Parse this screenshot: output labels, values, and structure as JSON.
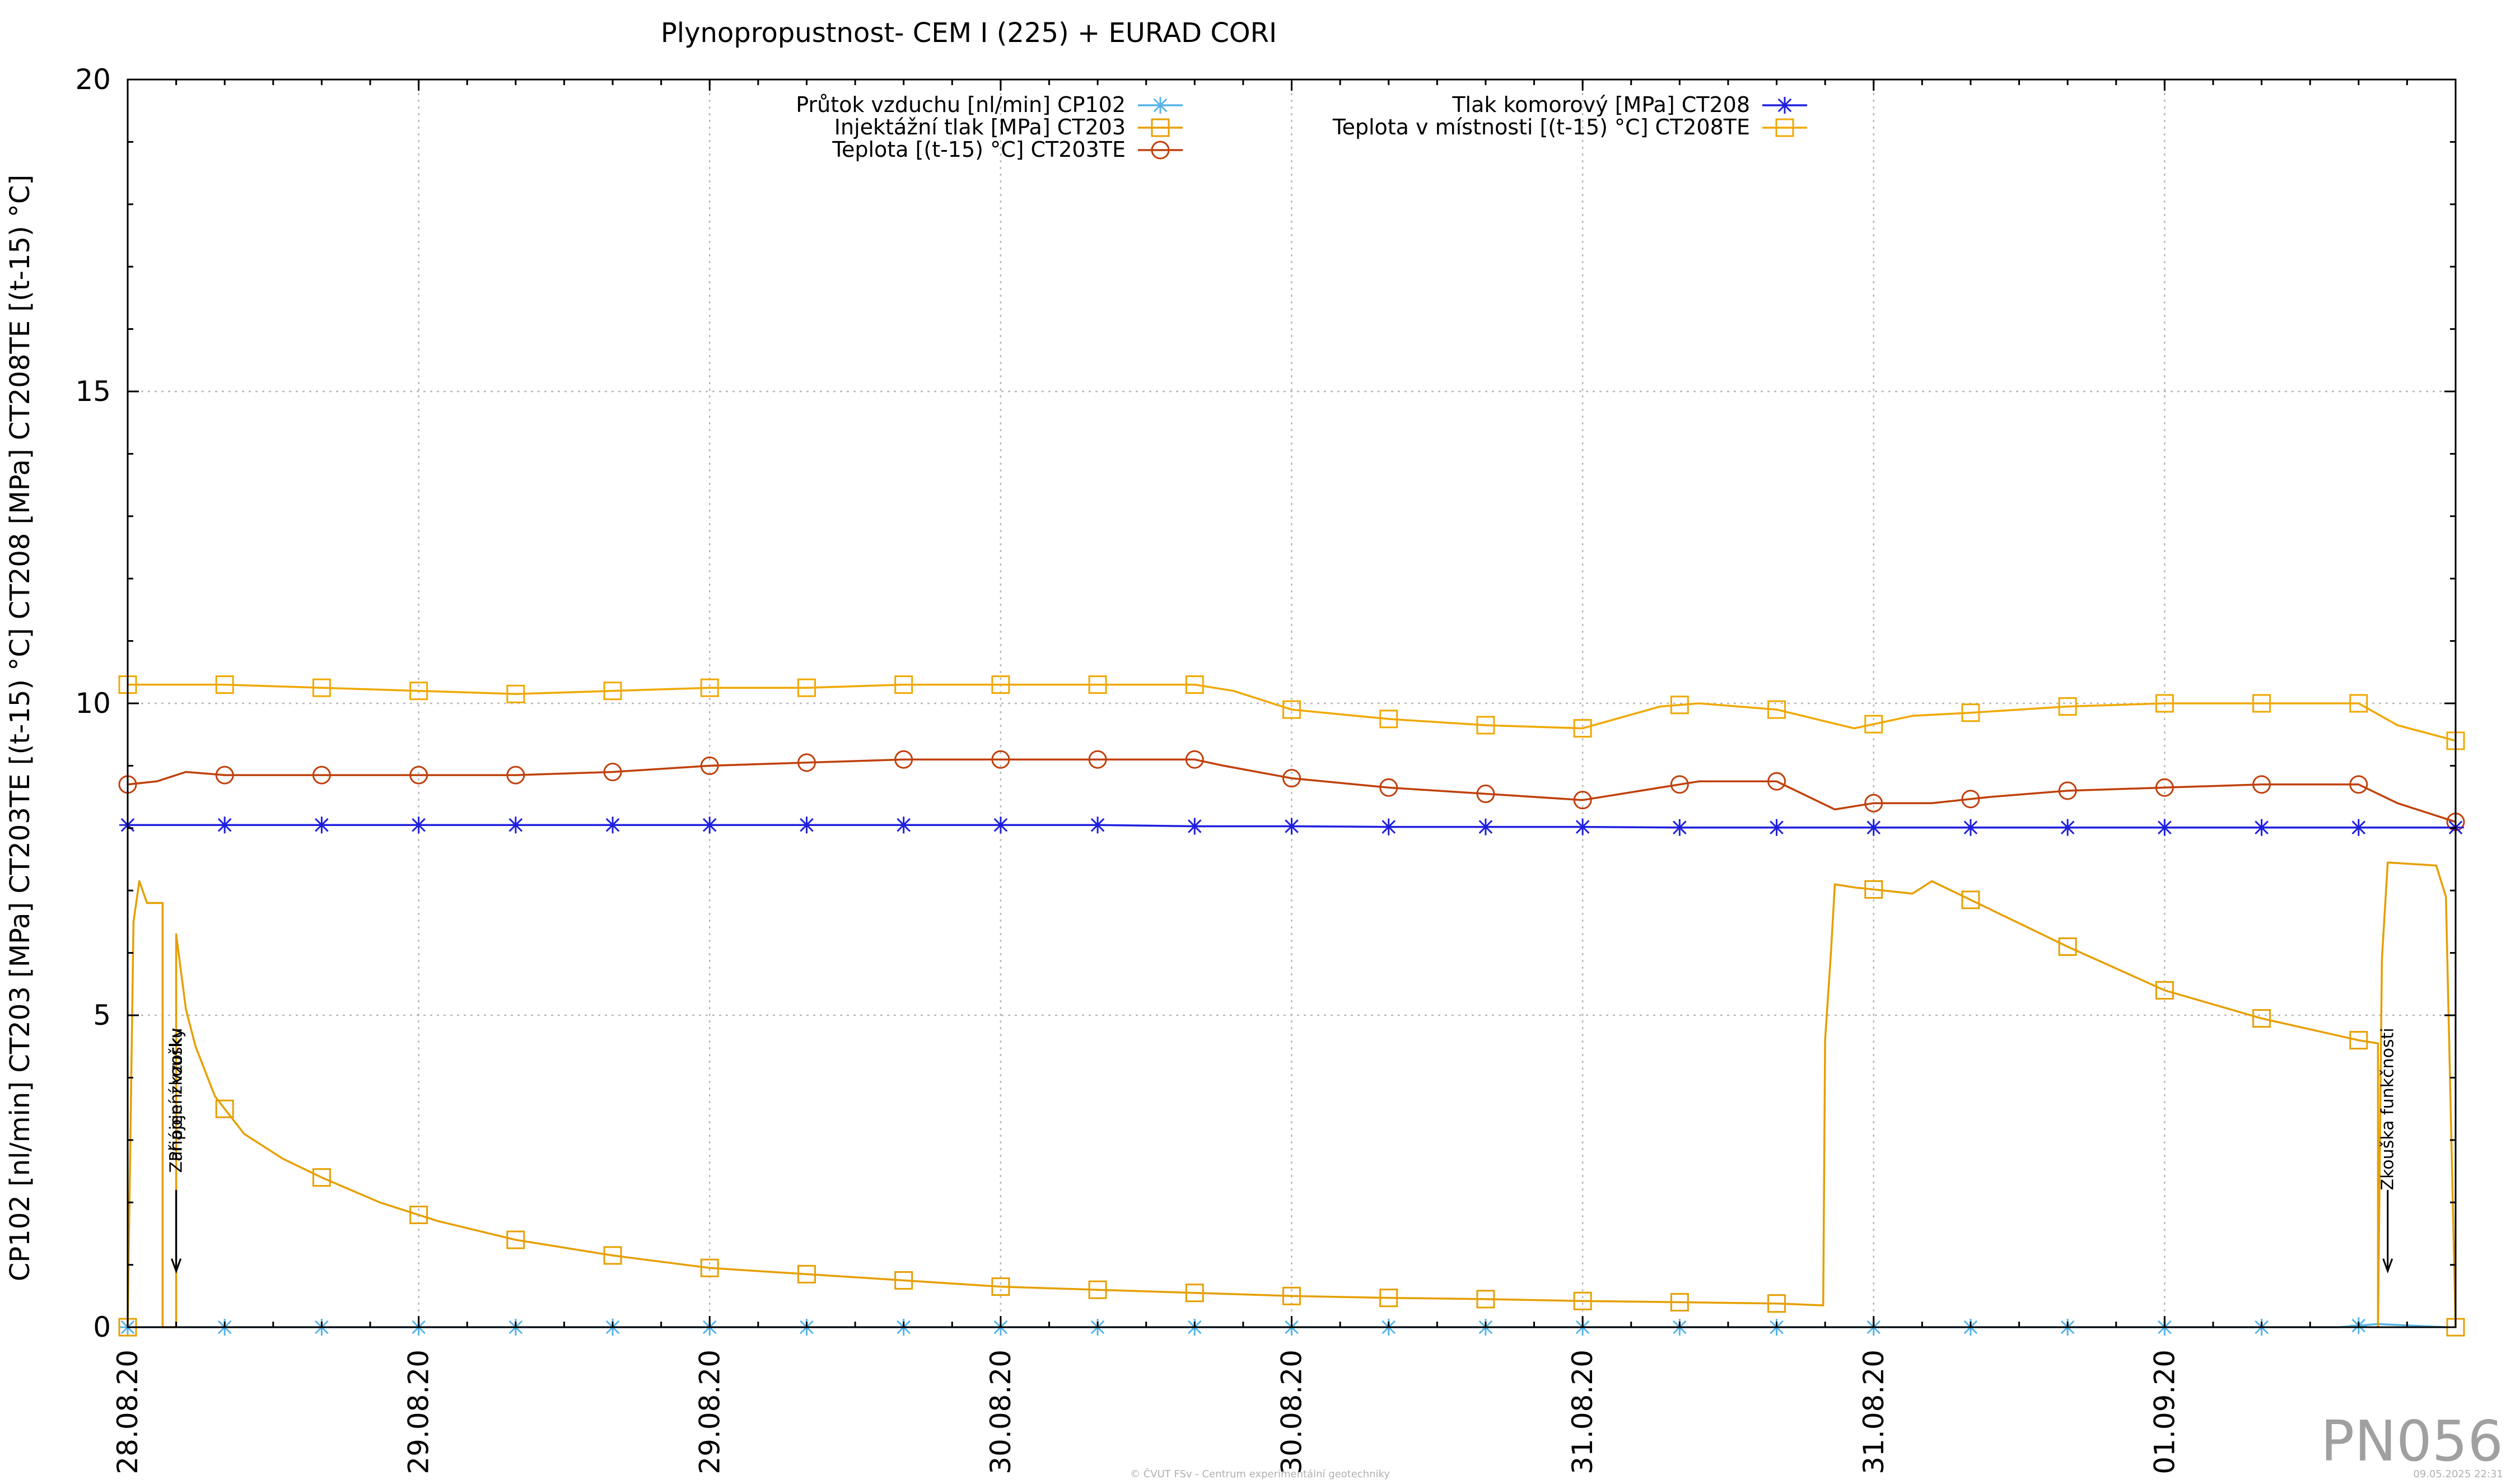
{
  "chart_data": {
    "type": "line",
    "title": "Plynopropustnost- CEM I (225) + EURAD CORI",
    "ylabel": "CP102 [nl/min] CT203 [MPa] CT203TE [(t-15) °C] CT208 [MPa] CT208TE [(t-15) °C]",
    "xlabel": "",
    "ylim": [
      0,
      20
    ],
    "yticks": [
      "0",
      "5",
      "10",
      "15",
      "20"
    ],
    "xlim": [
      0,
      12
    ],
    "xticks": [
      "28.08.20",
      "29.08.20",
      "29.08.20",
      "30.08.20",
      "30.08.20",
      "31.08.20",
      "31.08.20",
      "01.09.20"
    ],
    "grid": true,
    "legend_position": "top",
    "series": [
      {
        "name": "Průtok vzduchu [nl/min] CP102",
        "color": "#56b4e9",
        "marker": "star",
        "x": [
          0.0,
          0.25,
          0.5,
          0.75,
          1.0,
          1.5,
          2.0,
          3.0,
          4.0,
          5.0,
          6.0,
          7.0,
          8.0,
          9.0,
          10.0,
          11.0,
          11.4,
          11.6,
          11.95
        ],
        "y": [
          0.0,
          0.0,
          0.0,
          0.0,
          0.0,
          0.0,
          0.0,
          0.0,
          0.0,
          0.0,
          0.0,
          0.0,
          0.0,
          0.0,
          0.0,
          0.0,
          0.0,
          0.05,
          0.0
        ]
      },
      {
        "name": "Injektážní tlak [MPa] CT203",
        "color": "#e69f00",
        "marker": "square",
        "x": [
          0.0,
          0.03,
          0.06,
          0.1,
          0.15,
          0.18,
          0.18,
          0.25,
          0.25,
          0.3,
          0.35,
          0.45,
          0.6,
          0.8,
          1.0,
          1.3,
          1.6,
          2.0,
          2.5,
          3.0,
          3.5,
          4.0,
          4.5,
          5.0,
          5.5,
          6.0,
          6.5,
          7.0,
          7.5,
          8.0,
          8.5,
          8.74,
          8.75,
          8.78,
          8.8,
          8.9,
          9.2,
          9.3,
          9.6,
          10.0,
          10.5,
          11.0,
          11.5,
          11.6,
          11.6,
          11.62,
          11.65,
          11.9,
          11.95,
          12.0
        ],
        "y": [
          0.0,
          6.5,
          7.15,
          6.8,
          6.8,
          6.8,
          0.0,
          0.0,
          6.3,
          5.1,
          4.5,
          3.7,
          3.1,
          2.7,
          2.4,
          2.0,
          1.7,
          1.4,
          1.15,
          0.95,
          0.85,
          0.75,
          0.65,
          0.6,
          0.55,
          0.5,
          0.47,
          0.45,
          0.42,
          0.4,
          0.38,
          0.35,
          4.6,
          6.0,
          7.1,
          7.05,
          6.95,
          7.15,
          6.7,
          6.1,
          5.4,
          4.95,
          4.6,
          4.55,
          0.0,
          5.9,
          7.45,
          7.4,
          6.9,
          0.0
        ]
      },
      {
        "name": "Teplota [(t-15) °C] CT203TE",
        "color": "#c0400b",
        "marker": "circle",
        "x": [
          0.0,
          0.15,
          0.3,
          0.5,
          0.8,
          1.2,
          1.6,
          2.0,
          2.5,
          3.0,
          3.5,
          4.0,
          4.5,
          5.0,
          5.5,
          5.65,
          6.0,
          6.5,
          7.0,
          7.5,
          7.9,
          8.1,
          8.5,
          8.8,
          9.0,
          9.3,
          9.6,
          10.0,
          10.5,
          11.0,
          11.5,
          11.7,
          12.0
        ],
        "y": [
          8.7,
          8.75,
          8.9,
          8.85,
          8.85,
          8.85,
          8.85,
          8.85,
          8.9,
          9.0,
          9.05,
          9.1,
          9.1,
          9.1,
          9.1,
          9.0,
          8.8,
          8.65,
          8.55,
          8.45,
          8.65,
          8.75,
          8.75,
          8.3,
          8.4,
          8.4,
          8.5,
          8.6,
          8.65,
          8.7,
          8.7,
          8.4,
          8.1
        ]
      },
      {
        "name": "Tlak komorový [MPa] CT208",
        "color": "#1f1fe0",
        "marker": "star",
        "x": [
          0.0,
          0.5,
          1.0,
          1.5,
          2.0,
          2.5,
          3.0,
          3.5,
          4.0,
          4.5,
          5.0,
          5.5,
          6.0,
          6.5,
          7.0,
          7.5,
          8.0,
          8.5,
          9.0,
          9.5,
          10.0,
          10.5,
          11.0,
          11.5,
          12.0
        ],
        "y": [
          8.05,
          8.05,
          8.05,
          8.05,
          8.05,
          8.05,
          8.05,
          8.05,
          8.05,
          8.05,
          8.05,
          8.03,
          8.03,
          8.02,
          8.02,
          8.02,
          8.01,
          8.01,
          8.01,
          8.01,
          8.01,
          8.01,
          8.01,
          8.01,
          8.01
        ]
      },
      {
        "name": "Teplota v místnosti [(t-15) °C] CT208TE",
        "color": "#f0a800",
        "marker": "square",
        "x": [
          0.0,
          0.5,
          1.0,
          1.5,
          2.0,
          2.5,
          3.0,
          3.5,
          4.0,
          4.5,
          5.0,
          5.5,
          5.7,
          6.0,
          6.5,
          7.0,
          7.5,
          7.9,
          8.1,
          8.5,
          8.9,
          9.2,
          9.5,
          10.0,
          10.5,
          11.0,
          11.5,
          11.7,
          12.0
        ],
        "y": [
          10.3,
          10.3,
          10.25,
          10.2,
          10.15,
          10.2,
          10.25,
          10.25,
          10.3,
          10.3,
          10.3,
          10.3,
          10.2,
          9.9,
          9.75,
          9.65,
          9.6,
          9.95,
          10.0,
          9.9,
          9.6,
          9.8,
          9.85,
          9.95,
          10.0,
          10.0,
          10.0,
          9.65,
          9.4
        ]
      }
    ],
    "annotations": [
      {
        "text": "Zahájení zkoušky",
        "x": 0.25,
        "y_text": 4.8,
        "arrow_y": 0.9
      },
      {
        "text": "Připojení vzorku",
        "x": 0.25,
        "y_text": 4.8,
        "arrow_y": 0.9
      },
      {
        "text": "Zkouška funkčnosti",
        "x": 11.65,
        "y_text": 4.8,
        "arrow_y": 0.9
      }
    ]
  },
  "watermark": "PN056",
  "footer_left": "© ČVUT FSv - Centrum experimentální geotechniky",
  "footer_right": "09.05.2025 22:31"
}
